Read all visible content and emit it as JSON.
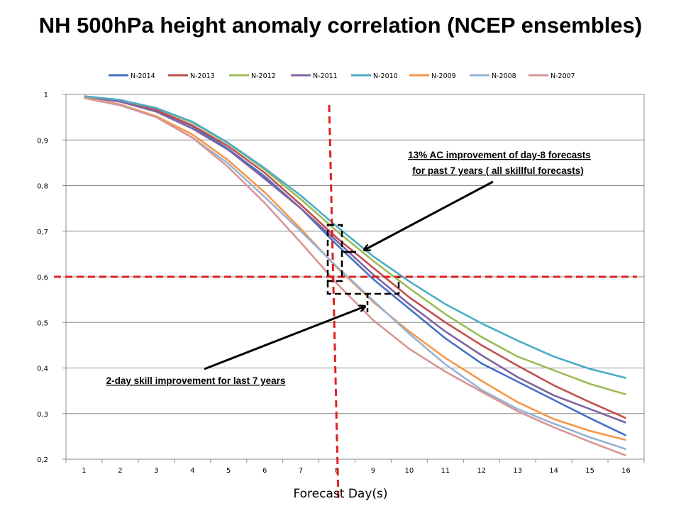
{
  "chart_data": {
    "type": "line",
    "title": "NH 500hPa height anomaly correlation (NCEP ensembles)",
    "xlabel": "Forecast Day(s)",
    "ylabel": "",
    "x": [
      1,
      2,
      3,
      4,
      5,
      6,
      7,
      8,
      9,
      10,
      11,
      12,
      13,
      14,
      15,
      16
    ],
    "ylim": [
      0.2,
      1.0
    ],
    "yticks": [
      "1",
      "0,9",
      "0,8",
      "0,7",
      "0,6",
      "0,5",
      "0,4",
      "0,3",
      "0,2"
    ],
    "xticks": [
      "1",
      "2",
      "3",
      "4",
      "5",
      "6",
      "7",
      "8",
      "9",
      "10",
      "11",
      "12",
      "13",
      "14",
      "15",
      "16"
    ],
    "grid": true,
    "legend_position": "top",
    "series": [
      {
        "name": "N-2014",
        "color": "#4472C4",
        "values": [
          0.995,
          0.985,
          0.965,
          0.93,
          0.88,
          0.82,
          0.75,
          0.67,
          0.595,
          0.53,
          0.465,
          0.41,
          0.37,
          0.33,
          0.29,
          0.252
        ]
      },
      {
        "name": "N-2013",
        "color": "#C0504D",
        "values": [
          0.995,
          0.985,
          0.966,
          0.932,
          0.886,
          0.828,
          0.758,
          0.685,
          0.62,
          0.555,
          0.5,
          0.45,
          0.405,
          0.362,
          0.325,
          0.29
        ]
      },
      {
        "name": "N-2012",
        "color": "#9BBB59",
        "values": [
          0.996,
          0.987,
          0.97,
          0.938,
          0.892,
          0.835,
          0.77,
          0.7,
          0.635,
          0.575,
          0.518,
          0.468,
          0.425,
          0.395,
          0.365,
          0.342
        ]
      },
      {
        "name": "N-2011",
        "color": "#8064A2",
        "values": [
          0.995,
          0.984,
          0.962,
          0.925,
          0.878,
          0.815,
          0.75,
          0.678,
          0.605,
          0.54,
          0.48,
          0.428,
          0.38,
          0.34,
          0.31,
          0.28
        ]
      },
      {
        "name": "N-2010",
        "color": "#4BACC6",
        "values": [
          0.996,
          0.988,
          0.97,
          0.94,
          0.893,
          0.838,
          0.778,
          0.71,
          0.645,
          0.59,
          0.54,
          0.498,
          0.46,
          0.425,
          0.398,
          0.378
        ]
      },
      {
        "name": "N-2009",
        "color": "#F79646",
        "values": [
          0.993,
          0.978,
          0.952,
          0.912,
          0.855,
          0.785,
          0.705,
          0.62,
          0.545,
          0.48,
          0.422,
          0.372,
          0.325,
          0.288,
          0.262,
          0.242
        ]
      },
      {
        "name": "N-2008",
        "color": "#95B3D7",
        "values": [
          0.992,
          0.976,
          0.95,
          0.905,
          0.848,
          0.775,
          0.7,
          0.622,
          0.548,
          0.475,
          0.408,
          0.352,
          0.31,
          0.278,
          0.248,
          0.222
        ]
      },
      {
        "name": "N-2007",
        "color": "#D99694",
        "values": [
          0.992,
          0.977,
          0.95,
          0.905,
          0.84,
          0.762,
          0.675,
          0.585,
          0.505,
          0.442,
          0.392,
          0.348,
          0.305,
          0.27,
          0.238,
          0.208
        ]
      }
    ],
    "reference_lines": {
      "vertical_x": 8,
      "horizontal_y": 0.6,
      "color": "#E02020"
    },
    "annotations": {
      "top_text_line1": "13% AC improvement of day-8 forecasts",
      "top_text_line2": "for past 7 years ( all skillful forecasts)",
      "bottom_text": "2-day skill improvement for last 7 years"
    }
  }
}
